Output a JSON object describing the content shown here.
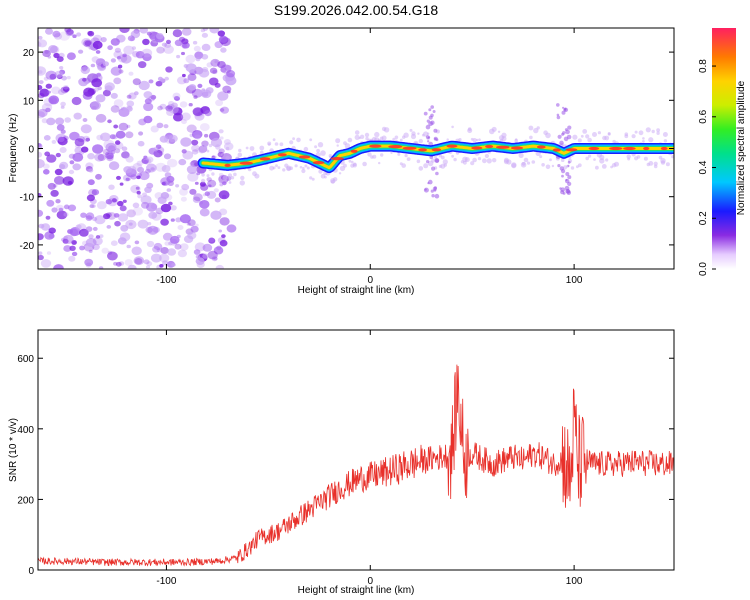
{
  "page_title": "S199.2026.042.00.54.G18",
  "chart_data": [
    {
      "type": "heatmap",
      "xlabel": "Height of straight line (km)",
      "ylabel": "Frequency (Hz)",
      "xlim": [
        -163,
        149
      ],
      "ylim": [
        -25,
        25
      ],
      "x_ticks": [
        -100,
        0,
        100
      ],
      "y_ticks": [
        -20,
        -10,
        0,
        10,
        20
      ],
      "colorbar": {
        "label": "Normalized spectral amplitude",
        "range": [
          0.0,
          0.95
        ],
        "ticks": [
          0.0,
          0.2,
          0.4,
          0.6,
          0.8
        ]
      },
      "noise_region_x": [
        -163,
        -68
      ],
      "ridge": {
        "x": [
          -82,
          -70,
          -60,
          -50,
          -40,
          -30,
          -25,
          -20,
          -15,
          -10,
          -5,
          0,
          10,
          20,
          30,
          35,
          40,
          50,
          60,
          70,
          80,
          90,
          95,
          100,
          110,
          120,
          130,
          140,
          149
        ],
        "frequency": [
          -3,
          -3.5,
          -3,
          -2,
          -1,
          -2,
          -3,
          -4,
          -1.5,
          -1,
          0,
          0.5,
          0.5,
          0,
          -0.5,
          0,
          0.5,
          0,
          0.5,
          0,
          0.5,
          0,
          -1,
          0,
          0,
          0,
          0,
          0,
          0
        ]
      }
    },
    {
      "type": "line",
      "xlabel": "Height of straight line (km)",
      "ylabel": "SNR (10 * v/v)",
      "xlim": [
        -163,
        149
      ],
      "ylim": [
        0,
        680
      ],
      "x_ticks": [
        -100,
        0,
        100
      ],
      "y_ticks": [
        0,
        200,
        400,
        600
      ],
      "color": "#e8302a",
      "series": [
        {
          "x": [
            -163,
            -150,
            -130,
            -110,
            -90,
            -75,
            -65,
            -58,
            -55,
            -50,
            -45,
            -40,
            -35,
            -30,
            -25,
            -20,
            -15,
            -10,
            -5,
            0,
            10,
            20,
            30,
            35,
            40,
            43,
            46,
            50,
            55,
            60,
            70,
            75,
            80,
            85,
            90,
            95,
            98,
            100,
            102,
            105,
            110,
            120,
            130,
            140,
            149
          ],
          "y": [
            25,
            25,
            22,
            22,
            22,
            25,
            35,
            70,
            90,
            100,
            110,
            130,
            150,
            170,
            190,
            210,
            230,
            245,
            260,
            265,
            280,
            300,
            315,
            320,
            330,
            520,
            320,
            330,
            315,
            300,
            320,
            310,
            330,
            320,
            300,
            320,
            250,
            420,
            300,
            310,
            300,
            300,
            305,
            300,
            300
          ]
        }
      ]
    }
  ]
}
